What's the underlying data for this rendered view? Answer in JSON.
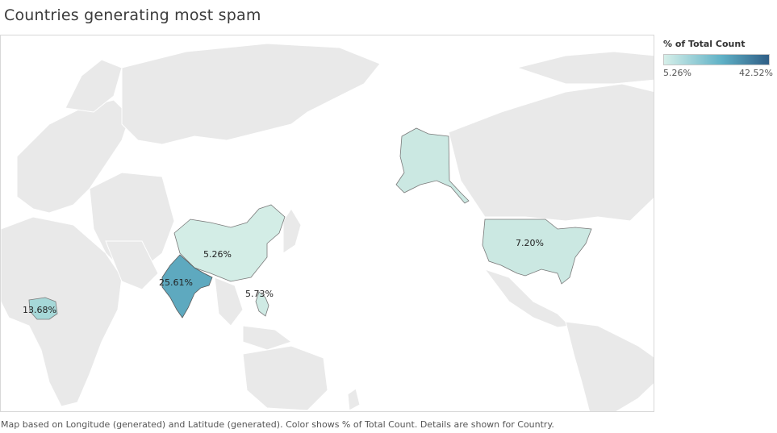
{
  "title": "Countries generating most spam",
  "legend": {
    "title": "% of Total Count",
    "min_label": "5.26%",
    "max_label": "42.52%",
    "colors": [
      "#d6efe9",
      "#5fb1c6",
      "#2f5e86"
    ]
  },
  "footer": "Map based on Longitude (generated) and Latitude (generated).  Color shows % of Total Count.  Details are shown for Country.",
  "map": {
    "base_land_color": "#e9e9e9",
    "ocean_color": "#ffffff",
    "countries": [
      {
        "id": "india",
        "label": "25.61%",
        "color": "#5ea9bf"
      },
      {
        "id": "china",
        "label": "5.26%",
        "color": "#d3ede6"
      },
      {
        "id": "philippines",
        "label": "5.73%",
        "color": "#cfeae4"
      },
      {
        "id": "nigeria",
        "label": "13.68%",
        "color": "#a6d8d8"
      },
      {
        "id": "usa",
        "label": "7.20%",
        "color": "#cbe8e2"
      },
      {
        "id": "alaska",
        "label": "",
        "color": "#cbe8e2"
      }
    ]
  }
}
